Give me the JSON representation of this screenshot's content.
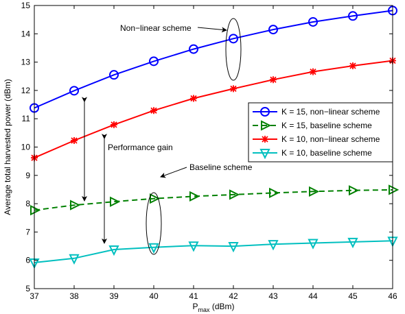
{
  "chart_data": {
    "type": "line",
    "title": "",
    "xlabel": {
      "main": "P",
      "sub": "max",
      "unit": " (dBm)"
    },
    "ylabel": "Average total harvested power (dBm)",
    "xlim": [
      37,
      46
    ],
    "ylim": [
      5,
      15
    ],
    "x": [
      37,
      38,
      39,
      40,
      41,
      42,
      43,
      44,
      45,
      46
    ],
    "xticks": [
      37,
      38,
      39,
      40,
      41,
      42,
      43,
      44,
      45,
      46
    ],
    "yticks": [
      5,
      6,
      7,
      8,
      9,
      10,
      11,
      12,
      13,
      14,
      15
    ],
    "grid": false,
    "legend_position": "right",
    "series": [
      {
        "name": "K = 15, non−linear scheme",
        "color": "#0000ff",
        "dash": "solid",
        "marker": "circle",
        "values": [
          11.38,
          11.99,
          12.55,
          13.03,
          13.46,
          13.83,
          14.15,
          14.42,
          14.63,
          14.82
        ]
      },
      {
        "name": "K = 15, baseline scheme",
        "color": "#008000",
        "dash": "dashed",
        "marker": "triangle-right",
        "values": [
          7.77,
          7.95,
          8.07,
          8.18,
          8.26,
          8.32,
          8.38,
          8.43,
          8.47,
          8.49
        ]
      },
      {
        "name": "K = 10, non−linear scheme",
        "color": "#ff0000",
        "dash": "solid",
        "marker": "star",
        "values": [
          9.62,
          10.23,
          10.79,
          11.29,
          11.72,
          12.06,
          12.38,
          12.66,
          12.87,
          13.05
        ]
      },
      {
        "name": "K = 10, baseline scheme",
        "color": "#00bfbf",
        "dash": "solid",
        "marker": "triangle-down",
        "values": [
          5.92,
          6.07,
          6.38,
          6.46,
          6.52,
          6.5,
          6.57,
          6.61,
          6.65,
          6.69
        ]
      }
    ],
    "annotations": [
      {
        "text": "Non−linear scheme"
      },
      {
        "text": "Performance gain"
      },
      {
        "text": "Baseline scheme"
      }
    ]
  }
}
